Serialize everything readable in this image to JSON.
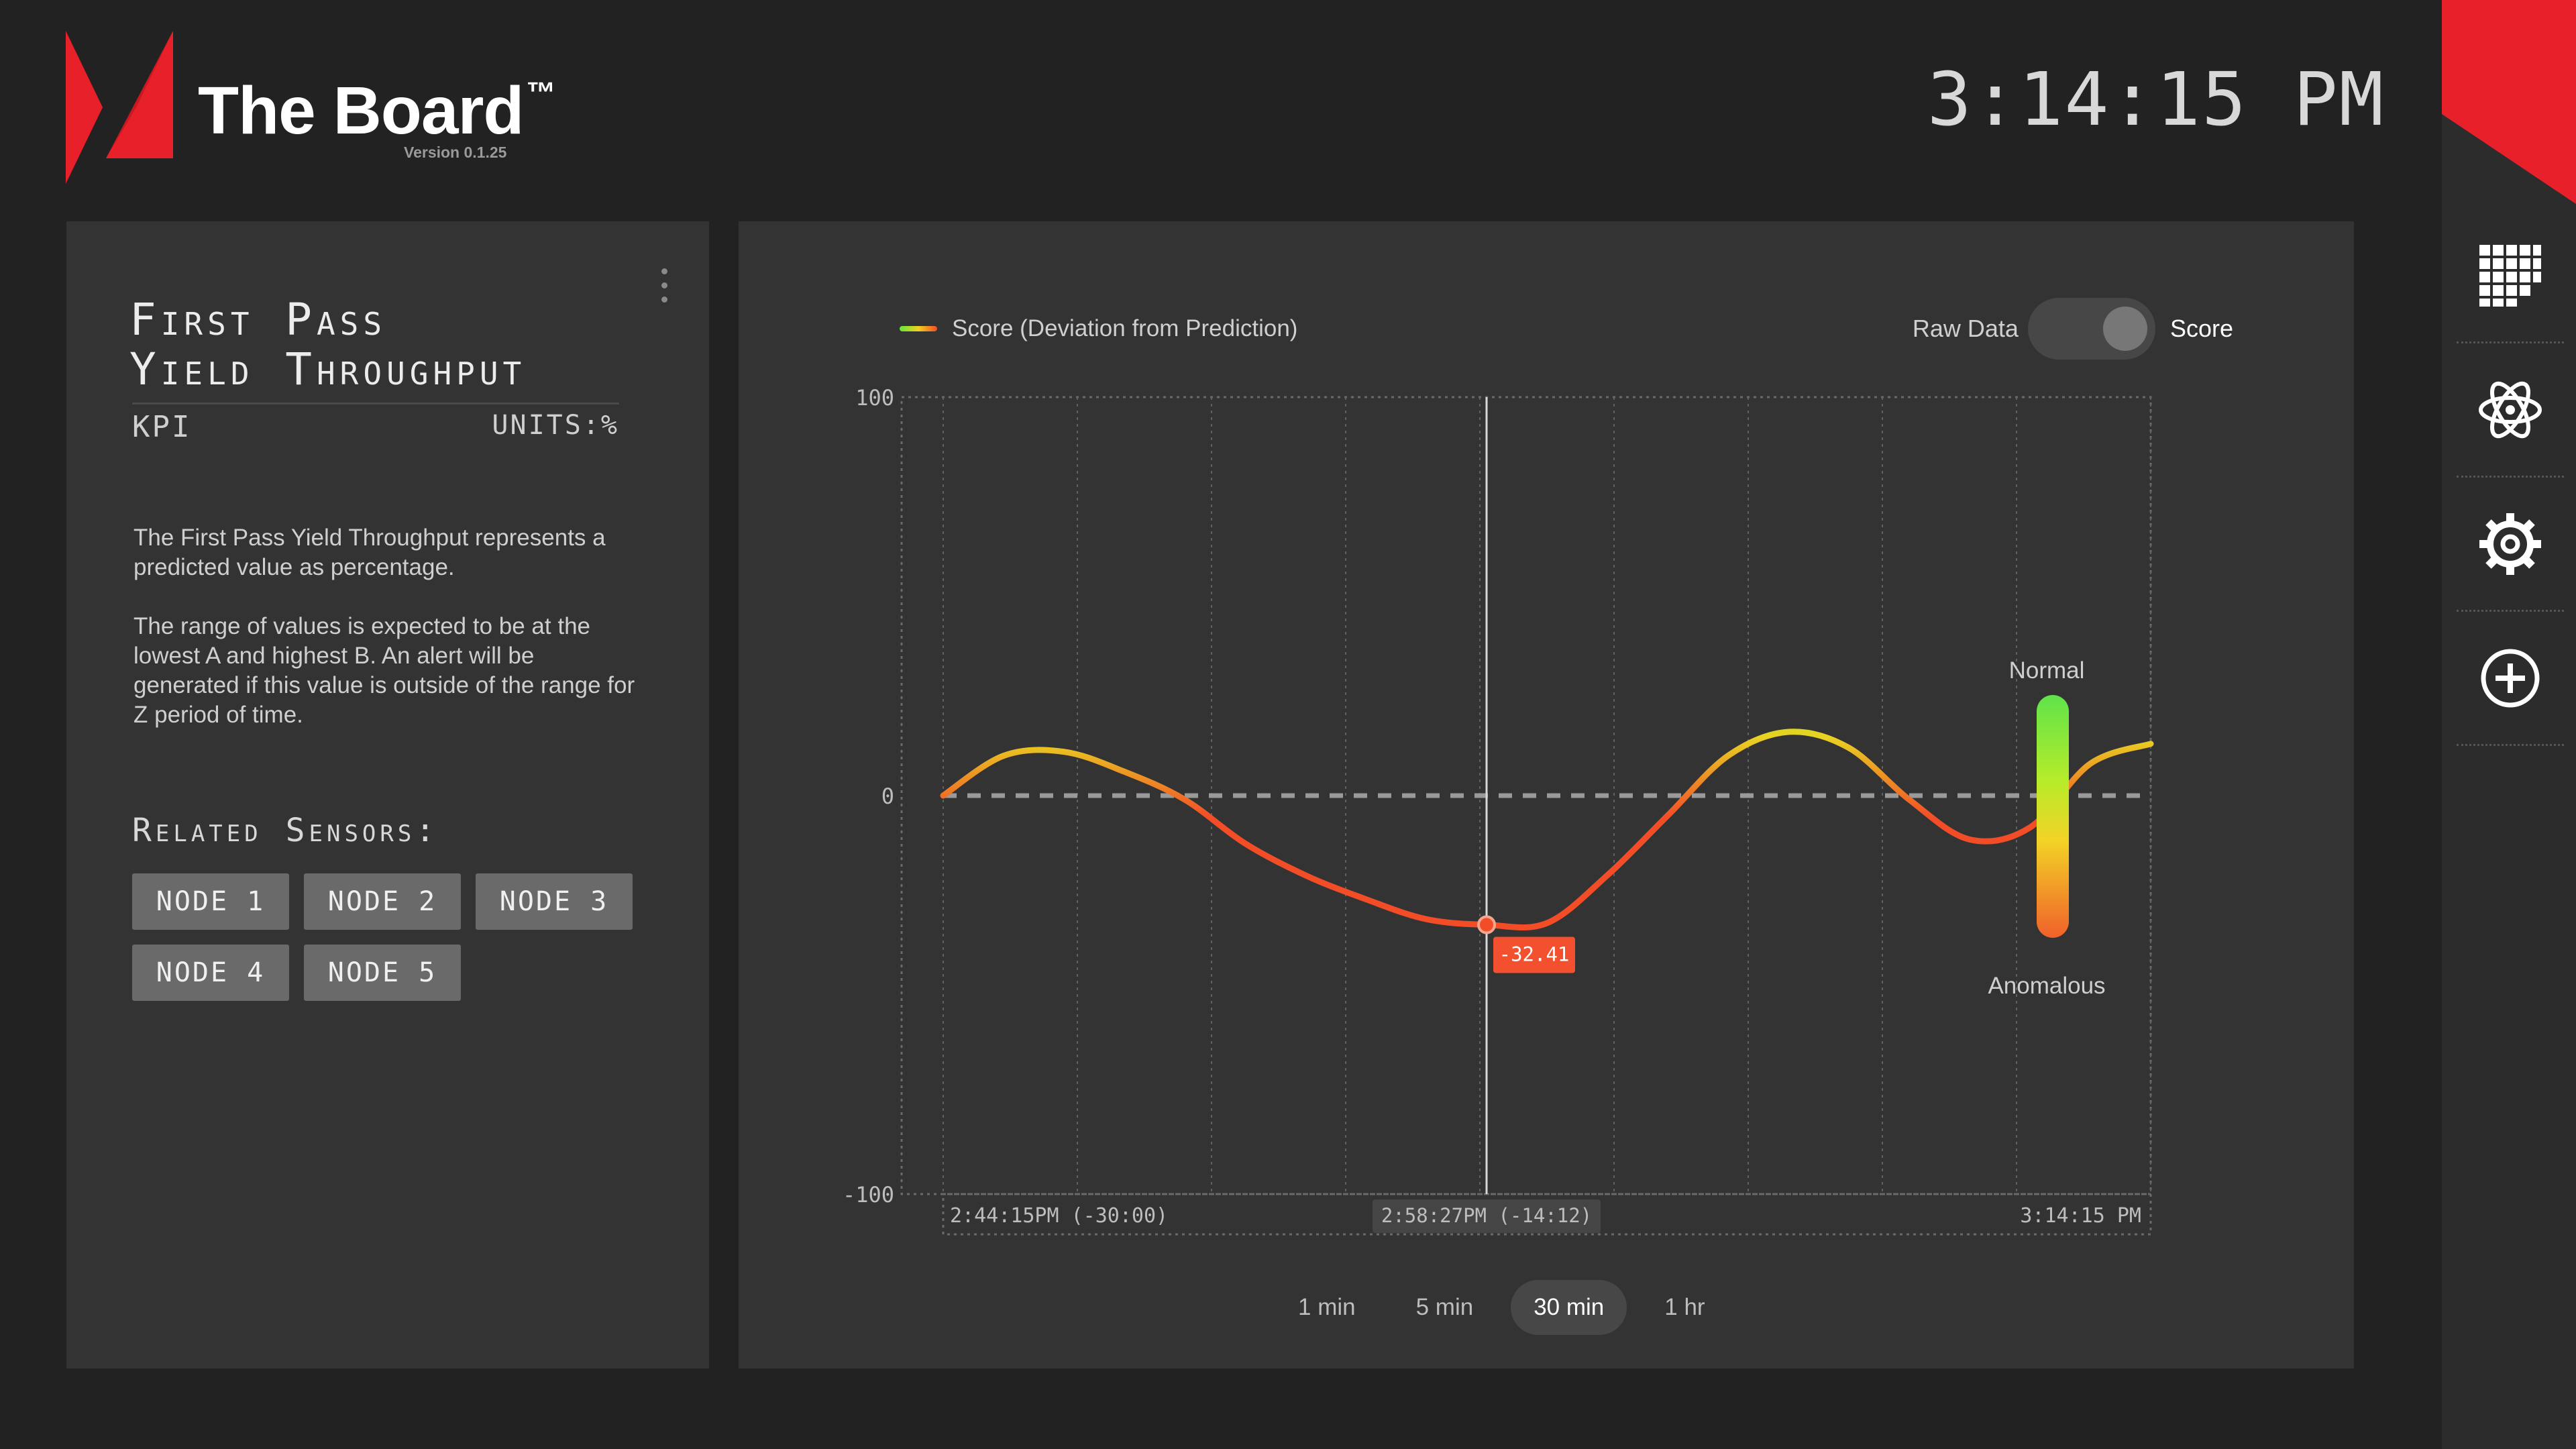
{
  "header": {
    "brand_name": "The Board",
    "trademark": "™",
    "version": "Version 0.1.25",
    "clock": "3:14:15 PM"
  },
  "colors": {
    "accent_red": "#e8202a",
    "background": "#222222",
    "card": "#333333",
    "normal_green": "#5fe34a",
    "anomalous_red": "#f24d27"
  },
  "sidebar": {
    "items": [
      {
        "icon": "grid-icon"
      },
      {
        "icon": "atom-icon"
      },
      {
        "icon": "gear-icon"
      },
      {
        "icon": "add-circle-icon"
      }
    ]
  },
  "kpi_card": {
    "title_line1": "First Pass",
    "title_line2": "Yield Throughput",
    "type": "KPI",
    "units": "UNITS:%",
    "description_p1": "The First Pass Yield Throughput represents a predicted value as percentage.",
    "description_p2": "The range of values is expected to be at the lowest A and highest B. An alert will be generated if this value is outside of the range for Z period of time.",
    "related_title": "Related Sensors:",
    "nodes": [
      "NODE 1",
      "NODE 2",
      "NODE 3",
      "NODE 4",
      "NODE 5"
    ]
  },
  "chart_panel": {
    "legend_label": "Score (Deviation from Prediction)",
    "toggle_left": "Raw Data",
    "toggle_right": "Score",
    "toggle_state": "Score",
    "range_top": "Normal",
    "range_bottom": "Anomalous",
    "time_ranges": [
      "1 min",
      "5 min",
      "30 min",
      "1 hr"
    ],
    "active_time_range": "30 min"
  },
  "chart_data": {
    "type": "line",
    "series": [
      {
        "values": [
          0,
          10,
          11,
          6,
          -1,
          -12,
          -20,
          -26,
          -31,
          -32.41,
          -32,
          -20,
          -5,
          10,
          16,
          12,
          -1,
          -11,
          -8,
          8,
          13
        ]
      }
    ],
    "ylim": [
      -100,
      100
    ],
    "yticks": [
      "100",
      "0",
      "-100"
    ],
    "x_labels": {
      "start": "2:44:15PM (-30:00)",
      "cursor": "2:58:27PM (-14:12)",
      "end": "3:14:15 PM"
    },
    "cursor_index": 9,
    "cursor_value_label": "-32.41",
    "baseline": 0,
    "grid": true
  }
}
